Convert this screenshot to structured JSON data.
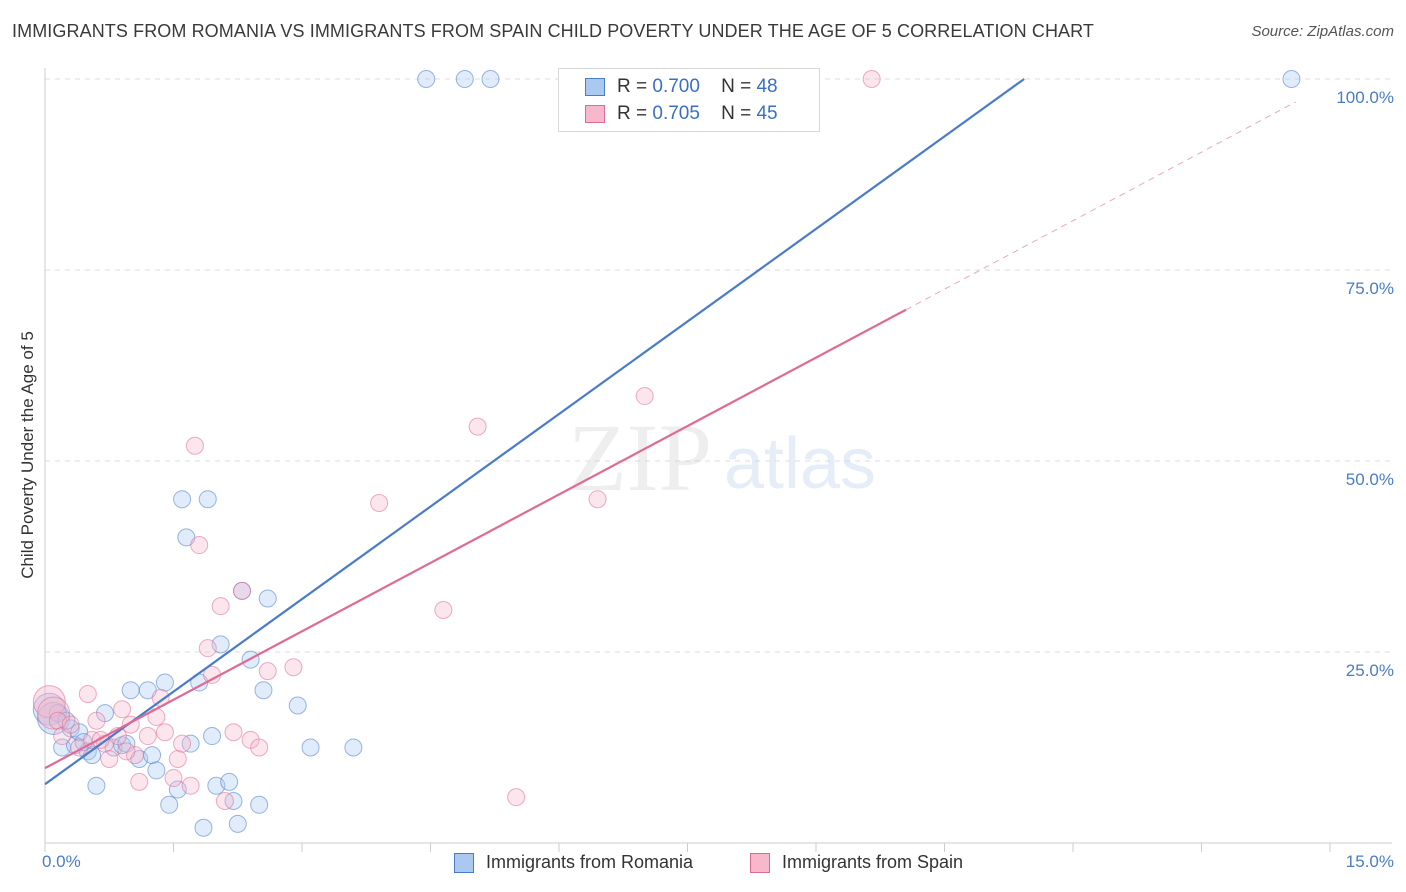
{
  "header": {
    "title": "IMMIGRANTS FROM ROMANIA VS IMMIGRANTS FROM SPAIN CHILD POVERTY UNDER THE AGE OF 5 CORRELATION CHART",
    "source": "Source: ZipAtlas.com"
  },
  "colors": {
    "romania": "#4a7cc9",
    "romania_fill": "#aac8f0",
    "spain": "#e06a94",
    "spain_fill": "#f7b8cb",
    "axis_tick": "#4a7cc9"
  },
  "legend": {
    "romania": {
      "r_label": "R =",
      "r_value": "0.700",
      "n_label": "N =",
      "n_value": "48"
    },
    "spain": {
      "r_label": "R =",
      "r_value": "0.705",
      "n_label": "N =",
      "n_value": "45"
    }
  },
  "bottom_legend": {
    "romania": "Immigrants from Romania",
    "spain": "Immigrants from Spain"
  },
  "watermark": {
    "zip": "ZIP",
    "atlas": "atlas"
  },
  "chart_data": {
    "type": "scatter",
    "title": "IMMIGRANTS FROM ROMANIA VS IMMIGRANTS FROM SPAIN CHILD POVERTY UNDER THE AGE OF 5 CORRELATION CHART",
    "xlabel": "",
    "ylabel": "Child Poverty Under the Age of 5",
    "xlim": [
      0,
      15
    ],
    "ylim": [
      0,
      100
    ],
    "x_tick_labels": [
      "0.0%",
      "15.0%"
    ],
    "y_ticks": [
      25,
      50,
      75,
      100
    ],
    "y_tick_labels": [
      "25.0%",
      "50.0%",
      "75.0%",
      "100.0%"
    ],
    "grid": true,
    "series": [
      {
        "name": "Immigrants from Romania",
        "color": "#4a7cc9",
        "r": 0.7,
        "n": 48,
        "trend": {
          "x": [
            0.0,
            11.43
          ],
          "y": [
            7.7,
            100.0
          ],
          "dashed_extension": false
        },
        "points": [
          [
            0.05,
            17.5
          ],
          [
            0.1,
            16.3
          ],
          [
            0.15,
            17.0
          ],
          [
            0.2,
            12.5
          ],
          [
            0.3,
            15.0
          ],
          [
            0.35,
            12.8
          ],
          [
            0.4,
            14.5
          ],
          [
            0.5,
            12.0
          ],
          [
            0.55,
            11.5
          ],
          [
            0.6,
            7.5
          ],
          [
            0.7,
            17.0
          ],
          [
            0.8,
            12.5
          ],
          [
            0.9,
            12.8
          ],
          [
            1.0,
            20.0
          ],
          [
            1.1,
            11.0
          ],
          [
            1.2,
            20.0
          ],
          [
            1.25,
            11.5
          ],
          [
            1.3,
            9.5
          ],
          [
            1.4,
            21.0
          ],
          [
            1.45,
            5.0
          ],
          [
            1.55,
            7.0
          ],
          [
            1.6,
            45.0
          ],
          [
            1.65,
            40.0
          ],
          [
            1.7,
            13.0
          ],
          [
            1.8,
            21.0
          ],
          [
            1.85,
            2.0
          ],
          [
            1.9,
            45.0
          ],
          [
            1.95,
            14.0
          ],
          [
            2.0,
            7.5
          ],
          [
            2.05,
            26.0
          ],
          [
            2.15,
            8.0
          ],
          [
            2.2,
            5.5
          ],
          [
            2.25,
            2.5
          ],
          [
            2.3,
            33.0
          ],
          [
            2.4,
            24.0
          ],
          [
            2.5,
            5.0
          ],
          [
            2.55,
            20.0
          ],
          [
            2.6,
            32.0
          ],
          [
            2.95,
            18.0
          ],
          [
            3.1,
            12.5
          ],
          [
            3.6,
            12.5
          ],
          [
            4.45,
            100.0
          ],
          [
            4.9,
            100.0
          ],
          [
            5.2,
            100.0
          ],
          [
            14.55,
            100.0
          ],
          [
            0.25,
            16.0
          ],
          [
            0.45,
            13.2
          ],
          [
            0.95,
            13.0
          ]
        ]
      },
      {
        "name": "Immigrants from Spain",
        "color": "#e06a94",
        "r": 0.705,
        "n": 45,
        "trend": {
          "x": [
            0.0,
            10.05
          ],
          "y": [
            9.8,
            69.8
          ],
          "dashed_extension": true,
          "dashed_to": [
            14.6,
            97.0
          ]
        },
        "points": [
          [
            0.05,
            18.5
          ],
          [
            0.1,
            17.0
          ],
          [
            0.15,
            16.0
          ],
          [
            0.2,
            14.0
          ],
          [
            0.3,
            15.5
          ],
          [
            0.4,
            12.5
          ],
          [
            0.5,
            19.5
          ],
          [
            0.55,
            13.5
          ],
          [
            0.6,
            16.0
          ],
          [
            0.7,
            13.0
          ],
          [
            0.75,
            11.0
          ],
          [
            0.85,
            14.0
          ],
          [
            0.9,
            17.5
          ],
          [
            1.0,
            15.5
          ],
          [
            1.05,
            11.5
          ],
          [
            1.1,
            8.0
          ],
          [
            1.2,
            14.0
          ],
          [
            1.3,
            16.5
          ],
          [
            1.35,
            19.0
          ],
          [
            1.4,
            14.5
          ],
          [
            1.5,
            8.5
          ],
          [
            1.55,
            11.0
          ],
          [
            1.6,
            13.0
          ],
          [
            1.7,
            7.5
          ],
          [
            1.75,
            52.0
          ],
          [
            1.8,
            39.0
          ],
          [
            1.9,
            25.5
          ],
          [
            1.95,
            22.0
          ],
          [
            2.05,
            31.0
          ],
          [
            2.1,
            5.5
          ],
          [
            2.2,
            14.5
          ],
          [
            2.3,
            33.0
          ],
          [
            2.4,
            13.5
          ],
          [
            2.5,
            12.5
          ],
          [
            2.6,
            22.5
          ],
          [
            2.9,
            23.0
          ],
          [
            3.9,
            44.5
          ],
          [
            4.65,
            30.5
          ],
          [
            5.05,
            54.5
          ],
          [
            5.5,
            6.0
          ],
          [
            6.45,
            45.0
          ],
          [
            7.0,
            58.5
          ],
          [
            9.65,
            100.0
          ],
          [
            0.65,
            13.5
          ],
          [
            0.95,
            12.0
          ]
        ]
      }
    ]
  }
}
